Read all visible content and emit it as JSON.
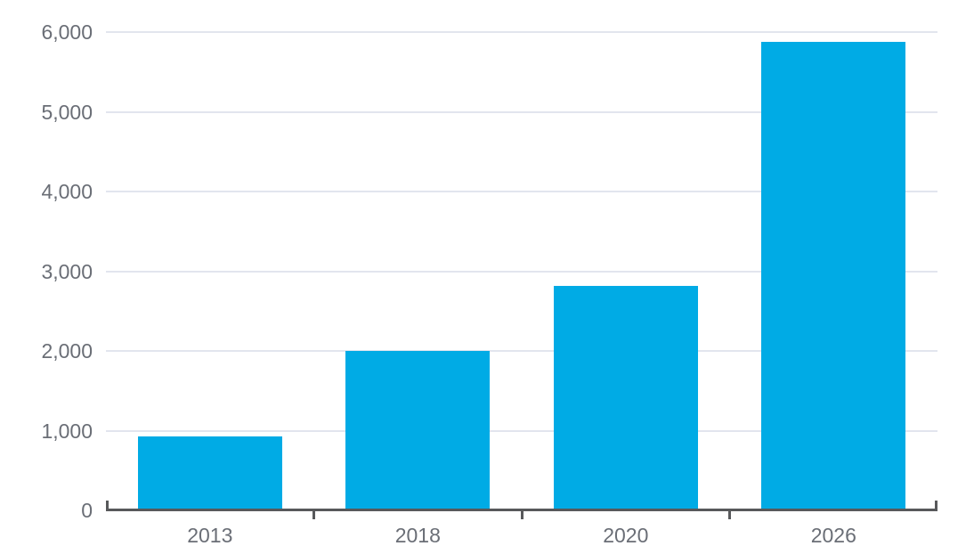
{
  "chart_data": {
    "type": "bar",
    "categories": [
      "2013",
      "2018",
      "2020",
      "2026"
    ],
    "values": [
      930,
      2000,
      2820,
      5880
    ],
    "title": "",
    "xlabel": "",
    "ylabel": "",
    "ylim": [
      0,
      6000
    ],
    "yticks": [
      0,
      1000,
      2000,
      3000,
      4000,
      5000,
      6000
    ],
    "ytick_labels": [
      "0",
      "1,000",
      "2,000",
      "3,000",
      "4,000",
      "5,000",
      "6,000"
    ],
    "grid": true,
    "legend": false,
    "legend_position": "none"
  },
  "theme": {
    "bar_color": "#00ABE5",
    "gridline_color": "#E2E5EE",
    "axis_line_color": "#58595B",
    "label_color": "#6A6E76",
    "background_color": "#FFFFFF"
  }
}
